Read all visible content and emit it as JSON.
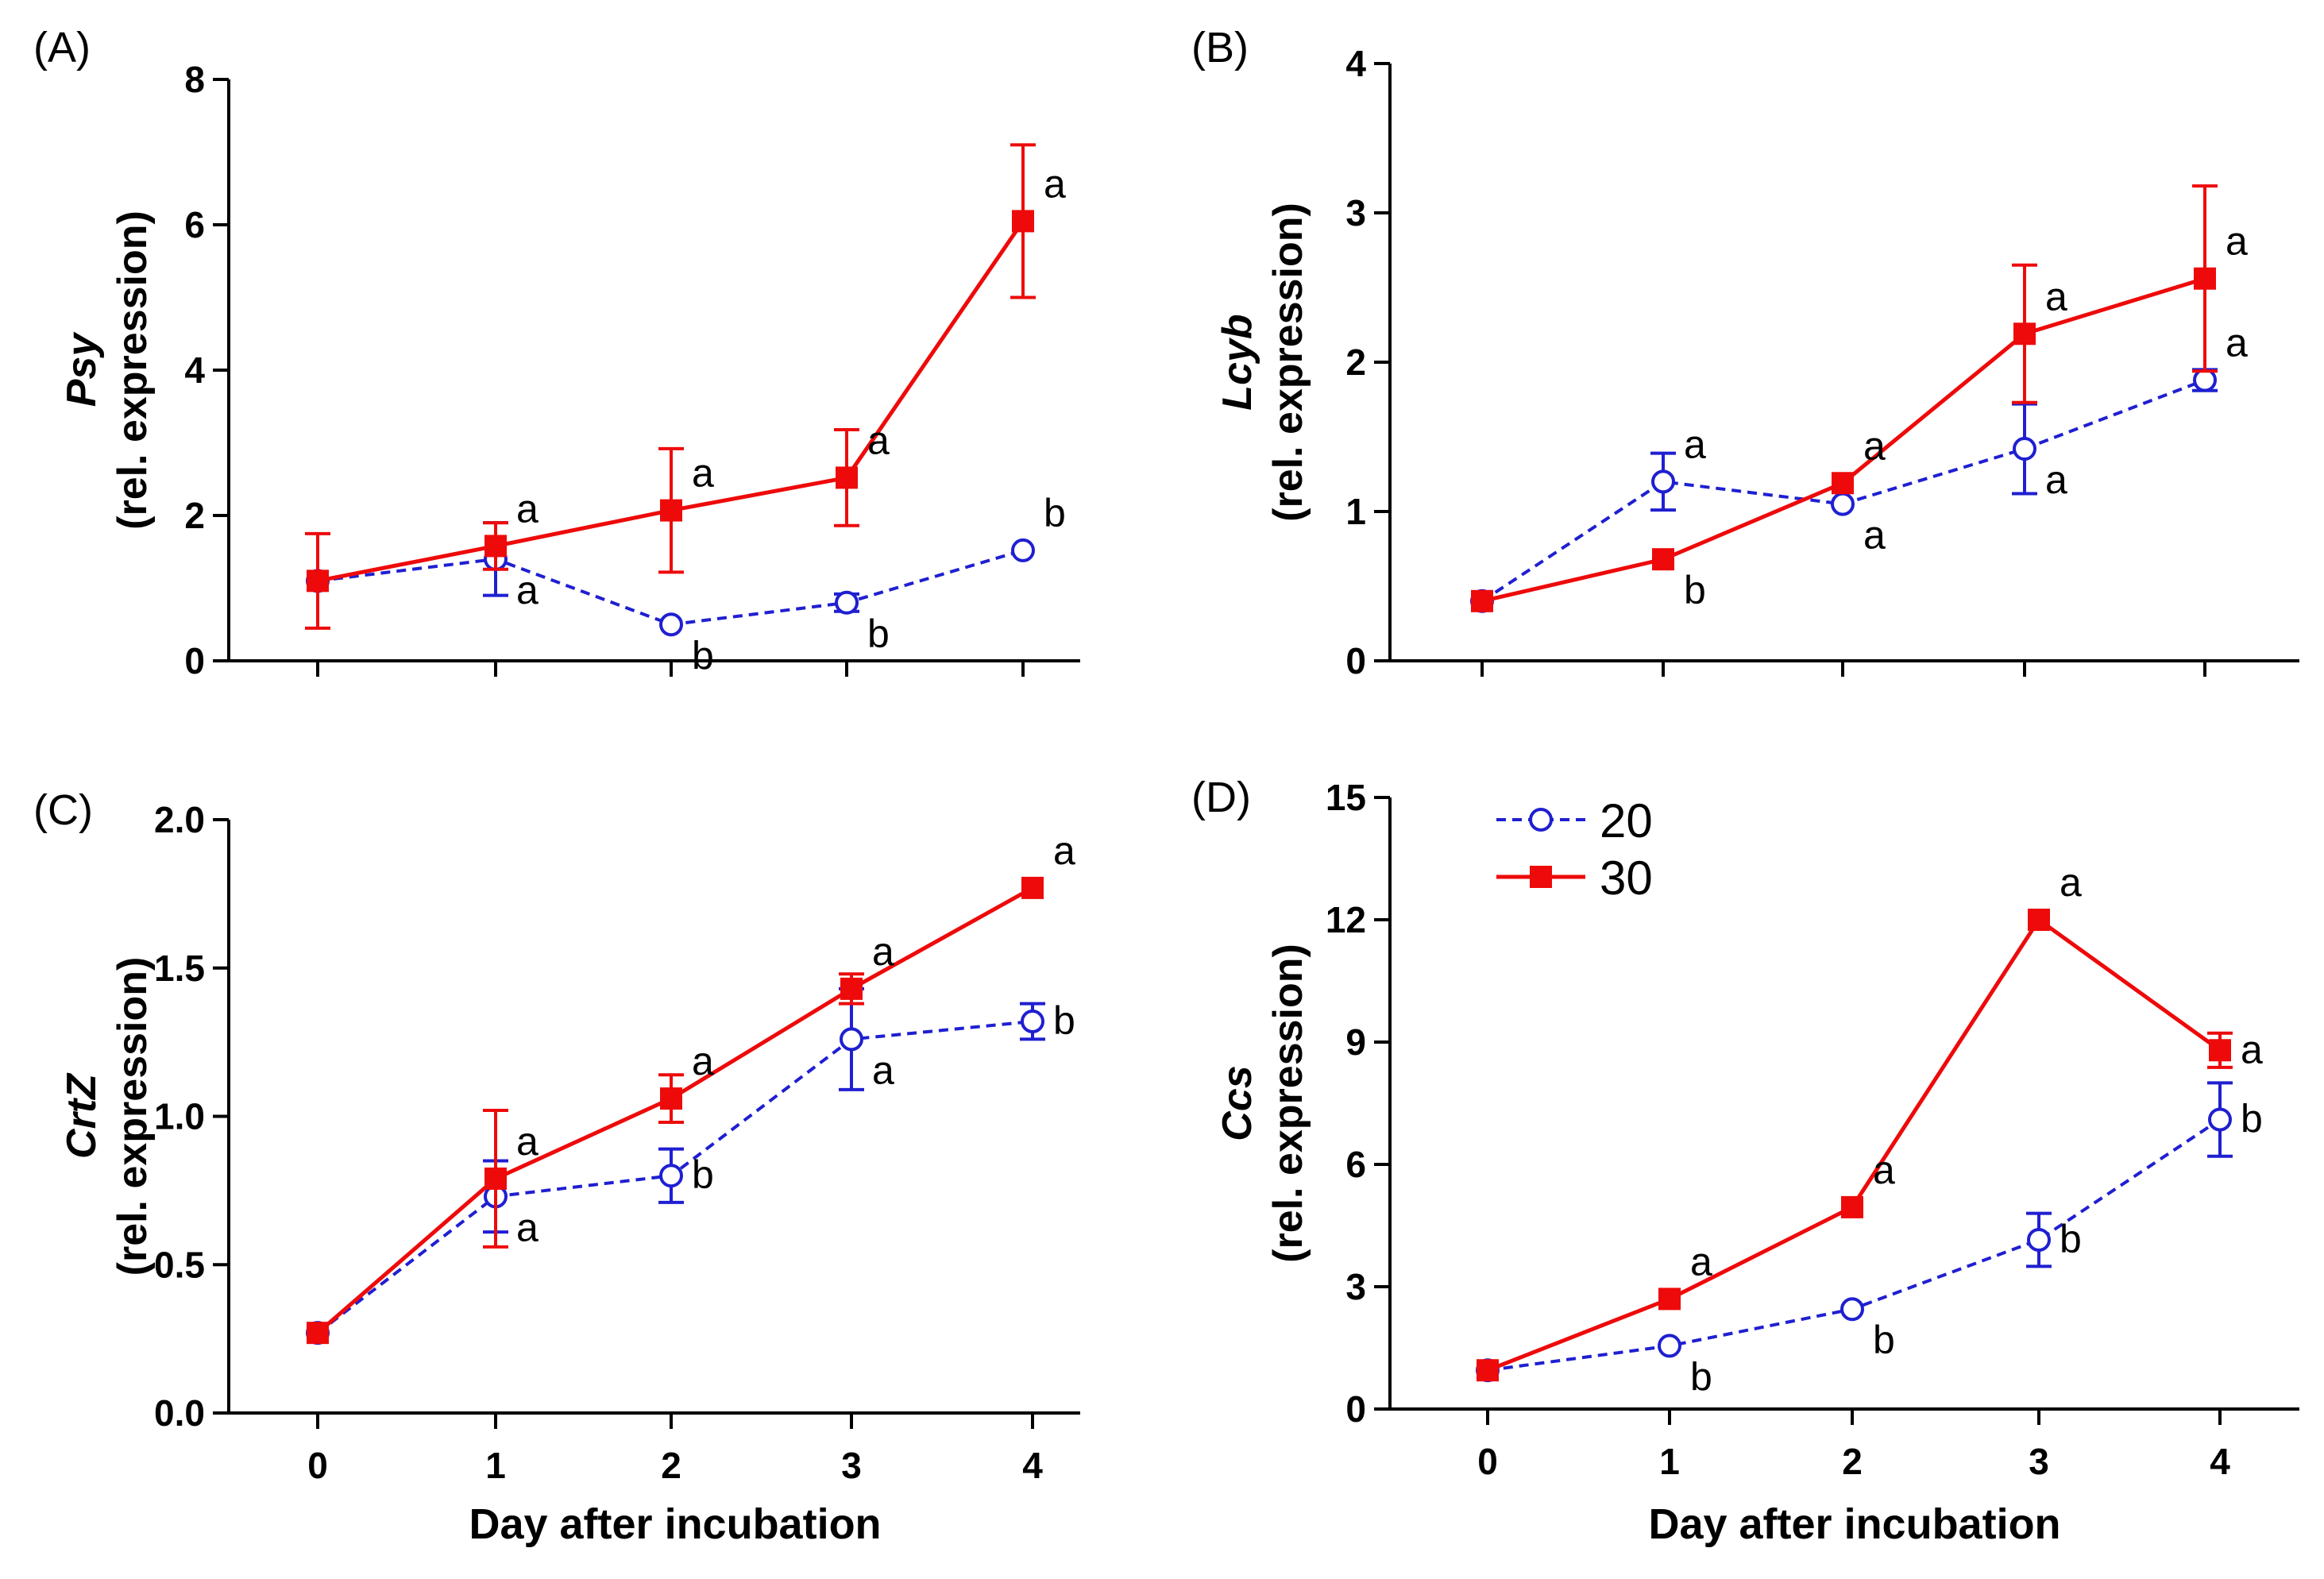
{
  "colors": {
    "series20": "#1f1fd1",
    "series30": "#ee0a0a"
  },
  "legend": {
    "entries": [
      {
        "name": "20"
      },
      {
        "name": "30"
      }
    ]
  },
  "chart_data": [
    {
      "panel": "(A)",
      "type": "line",
      "gene": "Psy",
      "ylabel_suffix": "(rel. expression)",
      "xlabel": "",
      "x": [
        0,
        1,
        2,
        3,
        4
      ],
      "xticks": [
        "0",
        "1",
        "2",
        "3",
        "4"
      ],
      "ylim": [
        0,
        8
      ],
      "yticks": [
        0,
        2,
        4,
        6,
        8
      ],
      "yticklabels": [
        "0",
        "2",
        "4",
        "6",
        "8"
      ],
      "series": [
        {
          "name": "20",
          "values": [
            1.1,
            1.4,
            0.5,
            0.8,
            1.52
          ],
          "err": [
            0.0,
            0.5,
            0.0,
            0.12,
            0.0
          ],
          "labels": [
            "",
            "a",
            "b",
            "b",
            "b"
          ],
          "label_side": [
            0,
            1,
            1,
            1,
            -1
          ]
        },
        {
          "name": "30",
          "values": [
            1.1,
            1.58,
            2.07,
            2.52,
            6.05
          ],
          "err": [
            0.65,
            0.32,
            0.85,
            0.66,
            1.05
          ],
          "labels": [
            "",
            "a",
            "a",
            "a",
            "a"
          ],
          "label_side": [
            0,
            -1,
            -1,
            -1,
            -1
          ]
        }
      ]
    },
    {
      "panel": "(B)",
      "type": "line",
      "gene": "Lcyb",
      "ylabel_suffix": "(rel. expression)",
      "xlabel": "",
      "x": [
        0,
        1,
        2,
        3,
        4
      ],
      "xticks": [
        "0",
        "1",
        "2",
        "3",
        "4"
      ],
      "ylim": [
        0,
        4
      ],
      "yticks": [
        0,
        1,
        2,
        3,
        4
      ],
      "yticklabels": [
        "0",
        "1",
        "2",
        "3",
        "4"
      ],
      "series": [
        {
          "name": "20",
          "values": [
            0.4,
            1.2,
            1.05,
            1.42,
            1.88
          ],
          "err": [
            0.0,
            0.19,
            0.0,
            0.3,
            0.07
          ],
          "labels": [
            "",
            "a",
            "a",
            "a",
            "a"
          ],
          "label_side": [
            0,
            -1,
            1,
            1,
            -1
          ]
        },
        {
          "name": "30",
          "values": [
            0.4,
            0.68,
            1.19,
            2.19,
            2.56
          ],
          "err": [
            0.0,
            0.0,
            0.0,
            0.46,
            0.62
          ],
          "labels": [
            "",
            "b",
            "a",
            "a",
            "a"
          ],
          "label_side": [
            0,
            1,
            -1,
            -1,
            -1
          ]
        }
      ]
    },
    {
      "panel": "(C)",
      "type": "line",
      "gene": "CrtZ",
      "ylabel_suffix": "(rel. expression)",
      "xlabel": "Day after incubation",
      "x": [
        0,
        1,
        2,
        3,
        4
      ],
      "xticks": [
        "0",
        "1",
        "2",
        "3",
        "4"
      ],
      "ylim": [
        0,
        2
      ],
      "yticks": [
        0,
        0.5,
        1.0,
        1.5,
        2.0
      ],
      "yticklabels": [
        "0.0",
        "0.5",
        "1.0",
        "1.5",
        "2.0"
      ],
      "series": [
        {
          "name": "20",
          "values": [
            0.27,
            0.73,
            0.8,
            1.26,
            1.32
          ],
          "err": [
            0.0,
            0.12,
            0.09,
            0.17,
            0.06
          ],
          "labels": [
            "",
            "a",
            "b",
            "a",
            "b"
          ],
          "label_side": [
            0,
            1,
            0,
            1,
            0
          ]
        },
        {
          "name": "30",
          "values": [
            0.27,
            0.79,
            1.06,
            1.43,
            1.77
          ],
          "err": [
            0.0,
            0.23,
            0.08,
            0.05,
            0.0
          ],
          "labels": [
            "",
            "a",
            "a",
            "a",
            "a"
          ],
          "label_side": [
            0,
            -1,
            -1,
            -1,
            -1
          ]
        }
      ]
    },
    {
      "panel": "(D)",
      "type": "line",
      "gene": "Ccs",
      "ylabel_suffix": "(rel. expression)",
      "xlabel": "Day after incubation",
      "x": [
        0,
        1,
        2,
        3,
        4
      ],
      "xticks": [
        "0",
        "1",
        "2",
        "3",
        "4"
      ],
      "ylim": [
        0,
        15
      ],
      "yticks": [
        0,
        3,
        6,
        9,
        12,
        15
      ],
      "yticklabels": [
        "0",
        "3",
        "6",
        "9",
        "12",
        "15"
      ],
      "series": [
        {
          "name": "20",
          "values": [
            0.95,
            1.55,
            2.45,
            4.15,
            7.1
          ],
          "err": [
            0.0,
            0.0,
            0.0,
            0.65,
            0.9
          ],
          "labels": [
            "",
            "b",
            "b",
            "b",
            "b"
          ],
          "label_side": [
            0,
            1,
            1,
            0,
            0
          ]
        },
        {
          "name": "30",
          "values": [
            0.95,
            2.7,
            4.95,
            12.0,
            8.8
          ],
          "err": [
            0.0,
            0.0,
            0.0,
            0.0,
            0.42
          ],
          "labels": [
            "",
            "a",
            "a",
            "a",
            "a"
          ],
          "label_side": [
            0,
            -1,
            -1,
            -1,
            0
          ]
        }
      ]
    }
  ]
}
